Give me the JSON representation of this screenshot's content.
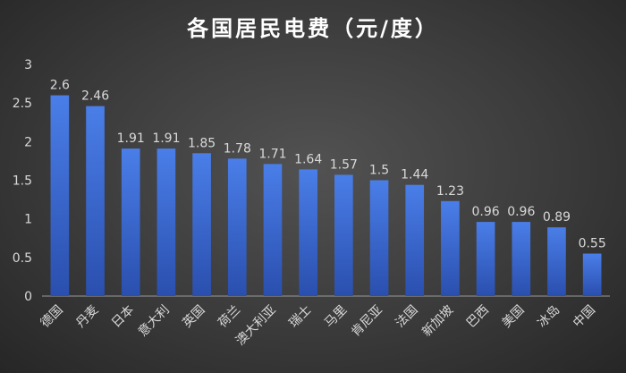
{
  "chart_data": {
    "type": "bar",
    "title": "各国居民电费（元/度）",
    "categories": [
      "德国",
      "丹麦",
      "日本",
      "意大利",
      "英国",
      "荷兰",
      "澳大利亚",
      "瑞士",
      "马里",
      "肯尼亚",
      "法国",
      "新加坡",
      "巴西",
      "美国",
      "冰岛",
      "中国"
    ],
    "values": [
      2.6,
      2.46,
      1.91,
      1.91,
      1.85,
      1.78,
      1.71,
      1.64,
      1.57,
      1.5,
      1.44,
      1.23,
      0.96,
      0.96,
      0.89,
      0.55
    ],
    "value_labels": [
      "2.6",
      "2.46",
      "1.91",
      "1.91",
      "1.85",
      "1.78",
      "1.71",
      "1.64",
      "1.57",
      "1.5",
      "1.44",
      "1.23",
      "0.96",
      "0.96",
      "0.89",
      "0.55"
    ],
    "yticks": [
      "0",
      "0.5",
      "1",
      "1.5",
      "2",
      "2.5",
      "3"
    ],
    "ylim": [
      0,
      3
    ],
    "grid": false,
    "legend": "none",
    "colors": {
      "bar_top": "#4a7ee8",
      "bar_bottom": "#2a4fae",
      "background": "#3b3b3b",
      "axis": "#9a9a9a"
    }
  }
}
